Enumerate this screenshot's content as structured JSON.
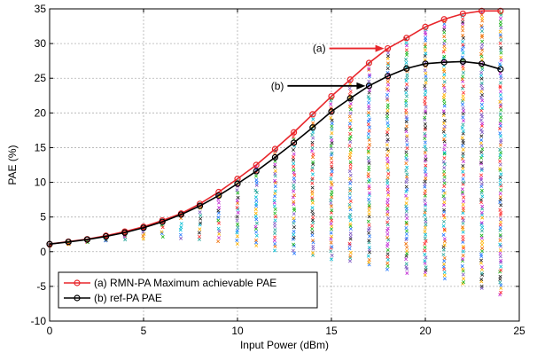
{
  "chart_data": {
    "type": "line",
    "xlabel": "Input Power (dBm)",
    "ylabel": "PAE (%)",
    "xlim": [
      0,
      25
    ],
    "ylim": [
      -10,
      35
    ],
    "xticks": [
      0,
      5,
      10,
      15,
      20,
      25
    ],
    "yticks": [
      -10,
      -5,
      0,
      5,
      10,
      15,
      20,
      25,
      30,
      35
    ],
    "grid": true,
    "legend_position": "bottom-left",
    "x": [
      0,
      1,
      2,
      3,
      4,
      5,
      6,
      7,
      8,
      9,
      10,
      11,
      12,
      13,
      14,
      15,
      16,
      17,
      18,
      19,
      20,
      21,
      22,
      23,
      24
    ],
    "series": [
      {
        "name": "(a) RMN-PA Maximum achievable PAE",
        "color": "#e8262b",
        "marker": "circle",
        "values": [
          1.1,
          1.45,
          1.8,
          2.3,
          2.9,
          3.6,
          4.5,
          5.5,
          6.9,
          8.6,
          10.5,
          12.5,
          14.8,
          17.2,
          19.8,
          22.4,
          24.8,
          27.2,
          29.3,
          30.8,
          32.4,
          33.5,
          34.3,
          34.7,
          34.7
        ]
      },
      {
        "name": "(b) ref-PA PAE",
        "color": "#000000",
        "marker": "circle",
        "values": [
          1.1,
          1.4,
          1.75,
          2.2,
          2.75,
          3.45,
          4.3,
          5.35,
          6.6,
          8.1,
          9.8,
          11.6,
          13.6,
          15.7,
          17.9,
          20.2,
          22.1,
          23.9,
          25.3,
          26.4,
          27.1,
          27.3,
          27.4,
          27.1,
          26.3
        ]
      }
    ],
    "scatter_spread": {
      "marker": "x",
      "description_values_min": [
        1.0,
        1.2,
        1.4,
        1.6,
        1.8,
        2.0,
        2.1,
        2.0,
        1.8,
        1.5,
        1.2,
        0.8,
        0.3,
        -0.2,
        -0.6,
        -1.0,
        -1.5,
        -2.0,
        -2.5,
        -3.0,
        -3.5,
        -4.0,
        -4.7,
        -5.3,
        -6.2
      ],
      "palette": [
        "#1f77ff",
        "#ff2a2a",
        "#19b519",
        "#c026d3",
        "#00bcd4",
        "#ffb300",
        "#222222",
        "#7e57c2",
        "#26a69a",
        "#ef6c00"
      ]
    },
    "annotations": [
      {
        "label": "(a)",
        "target_series": 0,
        "target_x": 18
      },
      {
        "label": "(b)",
        "target_series": 1,
        "target_x": 17
      }
    ]
  }
}
